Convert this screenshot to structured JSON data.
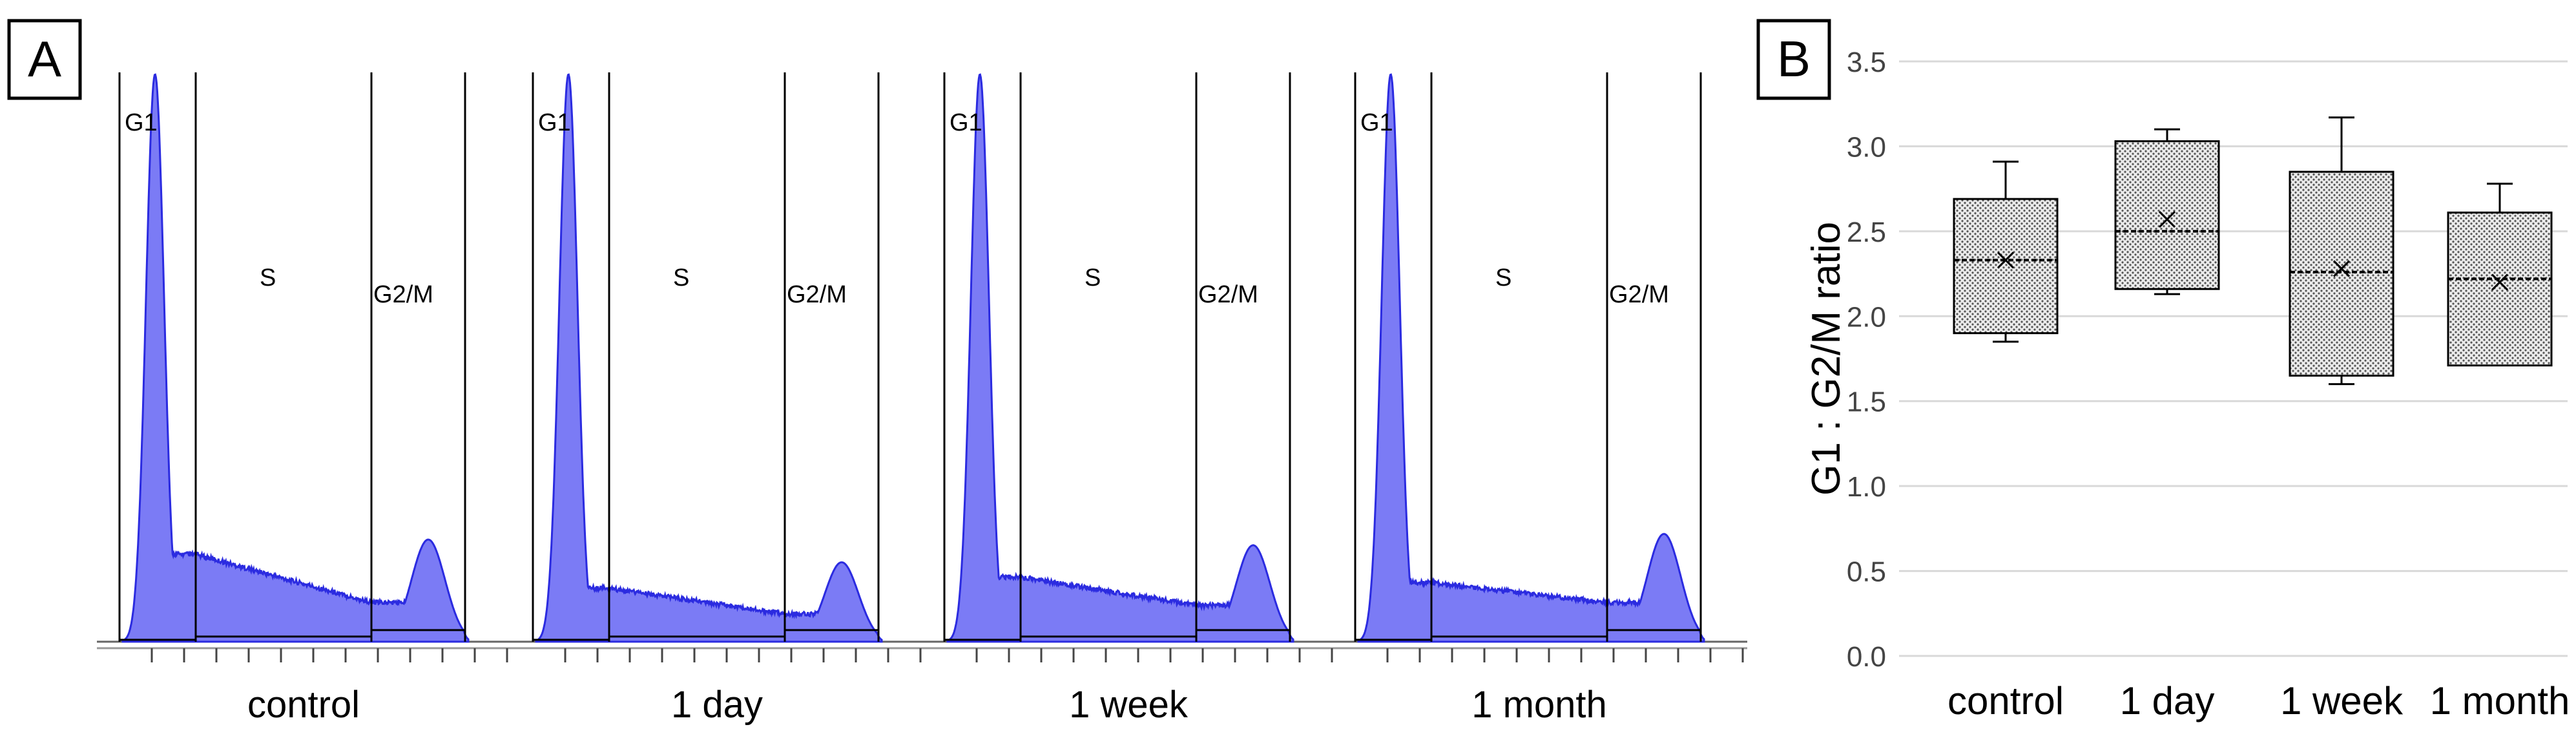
{
  "panels": {
    "a_label": "A",
    "b_label": "B"
  },
  "colors": {
    "histogram_fill": "#7B7BF5",
    "histogram_stroke": "#2B2BE0",
    "box_fill": "#d8d8d8",
    "grid": "#d9d9d9",
    "text": "#000000"
  },
  "chart_data": [
    {
      "type": "area",
      "panel": "A",
      "gate_labels": [
        "G1",
        "S",
        "G2/M"
      ],
      "samples": [
        {
          "name": "control",
          "g1_peak_height": 1.0,
          "s_plateau": [
            0.15,
            0.065
          ],
          "g2m_peak_height": 0.18
        },
        {
          "name": "1 day",
          "g1_peak_height": 1.0,
          "s_plateau": [
            0.09,
            0.045
          ],
          "g2m_peak_height": 0.14
        },
        {
          "name": "1 week",
          "g1_peak_height": 1.0,
          "s_plateau": [
            0.11,
            0.06
          ],
          "g2m_peak_height": 0.17
        },
        {
          "name": "1 month",
          "g1_peak_height": 1.0,
          "s_plateau": [
            0.1,
            0.065
          ],
          "g2m_peak_height": 0.19
        }
      ]
    },
    {
      "type": "box",
      "panel": "B",
      "categories": [
        "control",
        "1 day",
        "1 week",
        "1 month"
      ],
      "ylabel": "G1 : G2/M ratio",
      "ylim": [
        0.0,
        3.5
      ],
      "yticks": [
        "0.0",
        "0.5",
        "1.0",
        "1.5",
        "2.0",
        "2.5",
        "3.0",
        "3.5"
      ],
      "grid": true,
      "boxes": [
        {
          "category": "control",
          "min": 1.85,
          "q1": 1.9,
          "median": 2.33,
          "mean": 2.33,
          "q3": 2.69,
          "max": 2.91
        },
        {
          "category": "1 day",
          "min": 2.13,
          "q1": 2.16,
          "median": 2.5,
          "mean": 2.57,
          "q3": 3.03,
          "max": 3.1
        },
        {
          "category": "1 week",
          "min": 1.6,
          "q1": 1.65,
          "median": 2.26,
          "mean": 2.28,
          "q3": 2.85,
          "max": 3.17
        },
        {
          "category": "1 month",
          "min": 1.71,
          "q1": 1.71,
          "median": 2.22,
          "mean": 2.2,
          "q3": 2.61,
          "max": 2.78
        }
      ]
    }
  ]
}
